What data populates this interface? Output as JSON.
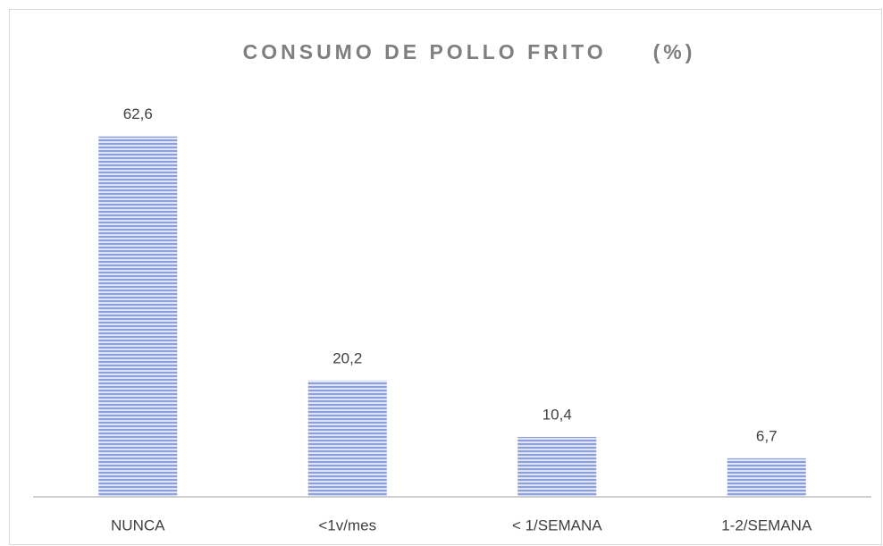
{
  "chart_data": {
    "type": "bar",
    "title": "CONSUMO DE POLLO FRITO     (%)",
    "categories": [
      "NUNCA",
      "<1v/mes",
      "< 1/SEMANA",
      "1-2/SEMANA"
    ],
    "values": [
      62.6,
      20.2,
      10.4,
      6.7
    ],
    "value_labels": [
      "62,6",
      "20,2",
      "10,4",
      "6,7"
    ],
    "color": "#8c9fd9",
    "ylim": [
      0,
      70
    ]
  }
}
